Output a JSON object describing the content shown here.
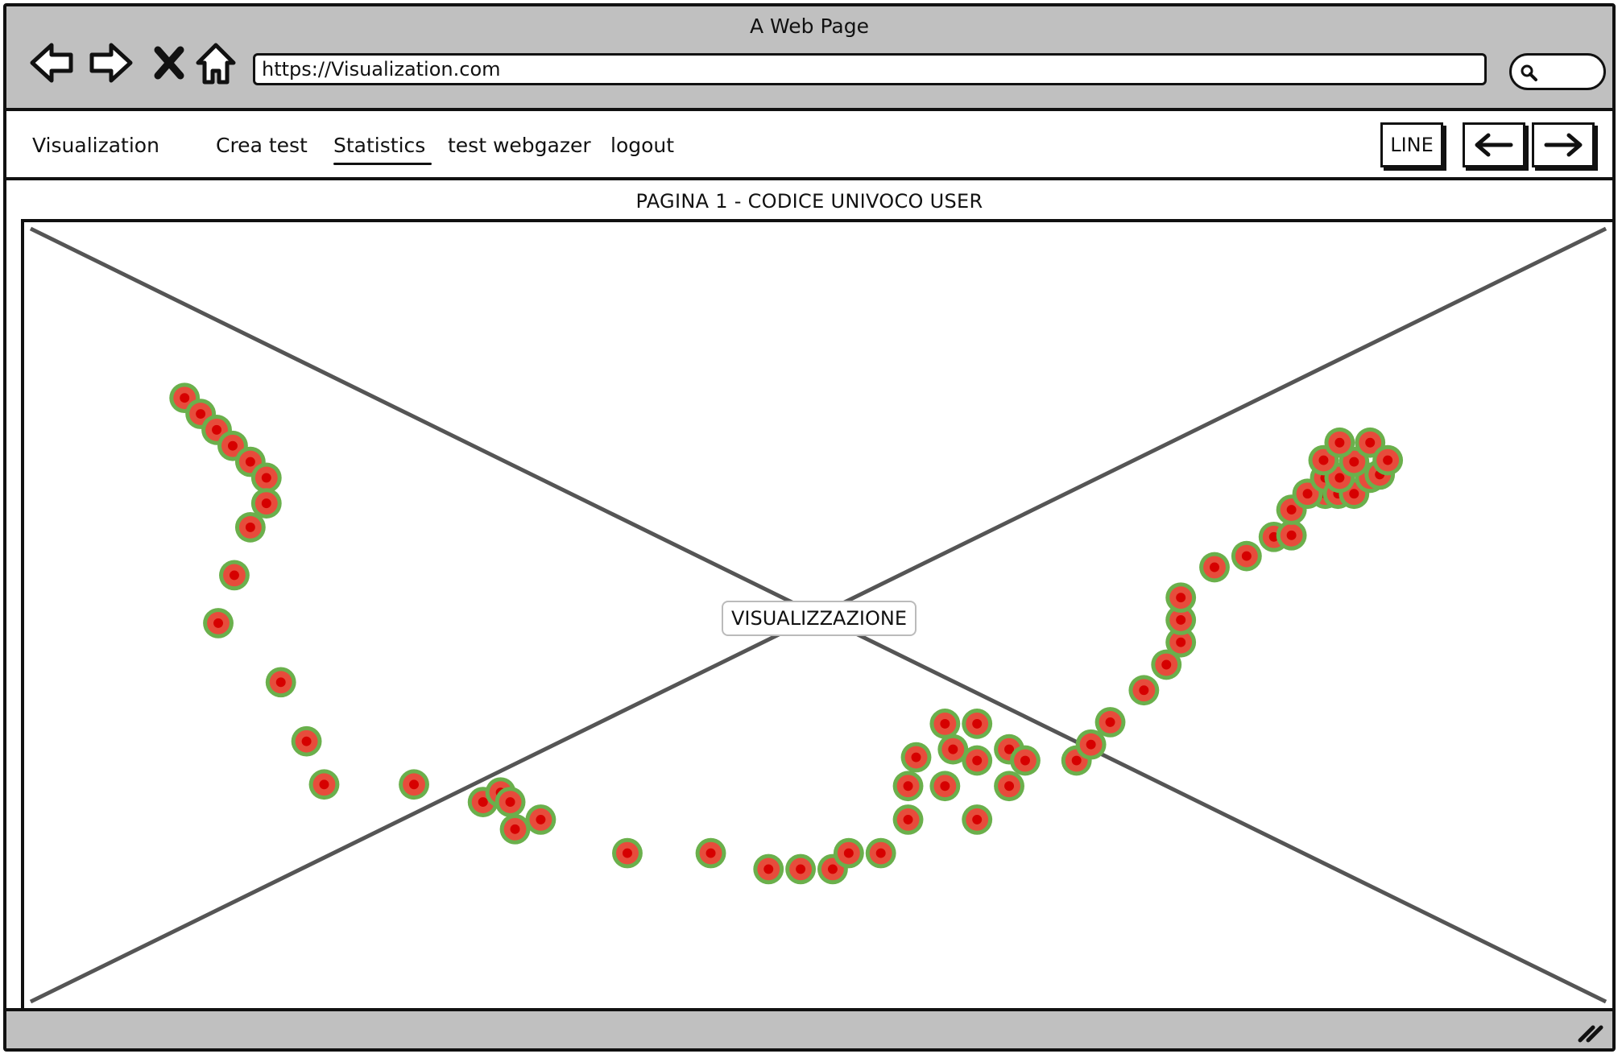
{
  "window": {
    "title": "A Web Page"
  },
  "browser": {
    "url": "https://Visualization.com",
    "icons": [
      "back-icon",
      "forward-icon",
      "close-icon",
      "home-icon",
      "search-icon"
    ]
  },
  "menu": {
    "brand": "Visualization",
    "items": [
      {
        "label": "Crea test",
        "active": false
      },
      {
        "label": "Statistics",
        "active": true
      },
      {
        "label": "test webgazer",
        "active": false
      },
      {
        "label": "logout",
        "active": false
      }
    ],
    "line_button": "LINE",
    "prev_icon": "arrow-left-icon",
    "next_icon": "arrow-right-icon"
  },
  "page": {
    "heading": "PAGINA 1 - CODICE UNIVOCO USER",
    "placeholder_label": "VISUALIZZAZIONE"
  },
  "gaze": {
    "colors": {
      "outer": "#6ab04c",
      "middle": "#e74c3c",
      "core": "#d60000"
    }
  }
}
